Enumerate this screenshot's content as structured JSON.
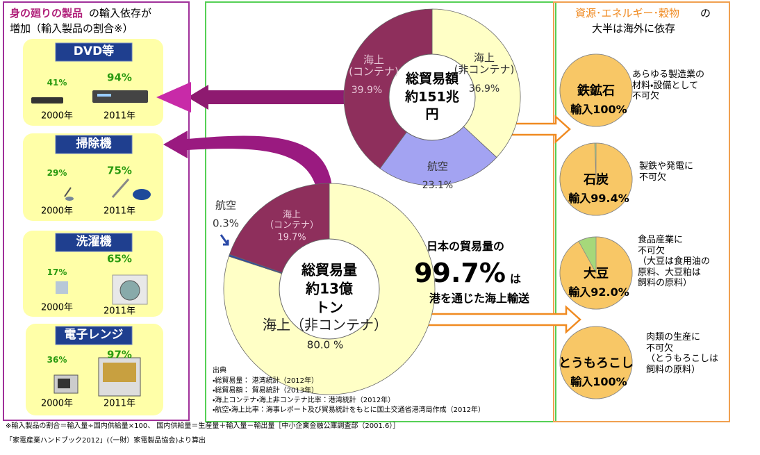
{
  "left": {
    "title_emphasis": "身の廻りの製品",
    "title_rest": "の輸入依存が",
    "title_line2": "増加（輸入製品の割合※）",
    "products": [
      {
        "name": "DVD等",
        "items": [
          {
            "share": "41%",
            "year": "2000年"
          },
          {
            "share": "94%",
            "year": "2011年"
          }
        ]
      },
      {
        "name": "掃除機",
        "items": [
          {
            "share": "29%",
            "year": "2000年"
          },
          {
            "share": "75%",
            "year": "2011年"
          }
        ]
      },
      {
        "name": "洗濯機",
        "items": [
          {
            "share": "17%",
            "year": "2000年"
          },
          {
            "share": "65%",
            "year": "2011年"
          }
        ]
      },
      {
        "name": "電子レンジ",
        "items": [
          {
            "share": "36%",
            "year": "2000年"
          },
          {
            "share": "97%",
            "year": "2011年"
          }
        ]
      }
    ]
  },
  "chart_data": [
    {
      "type": "donut",
      "center_label": "総貿易額\n約151兆\n円",
      "categories": [
        "海上\n(非コンテナ)",
        "航空",
        "海上\n(コンテナ)"
      ],
      "values": [
        36.9,
        23.1,
        39.9
      ],
      "value_labels": [
        "36.9%",
        "23.1%",
        "39.9%"
      ],
      "colors": [
        "#ffffc6",
        "#a3a3f2",
        "#8e2f5c"
      ]
    },
    {
      "type": "donut",
      "center_label": "総貿易量\n約13億\nトン",
      "categories": [
        "海上（非コンテナ）",
        "航空",
        "海上\n（コンテナ）"
      ],
      "values": [
        80.0,
        0.3,
        19.7
      ],
      "value_labels": [
        "80.0 %",
        "0.3%",
        "19.7%"
      ],
      "colors": [
        "#ffffc6",
        "#2b4aa8",
        "#8e2f5c"
      ]
    },
    {
      "type": "pies",
      "title_emphasis": "資源･エネルギー･穀物",
      "title_rest": "の",
      "title_line2": "大半は海外に依存",
      "categories": [
        "鉄鉱石",
        "石炭",
        "大豆",
        "とうもろこし"
      ],
      "values": [
        100,
        99.4,
        92.0,
        100
      ],
      "value_labels": [
        "輸入100%",
        "輸入99.4%",
        "輸入92.0%",
        "輸入100%"
      ],
      "notes": [
        "あらゆる製造業の\n材料・設備として\n不可欠",
        "製鉄や発電に\n不可欠",
        "食品産業に\n不可欠\n（大豆は食用油の\n原料、大豆粕は\n飼料の原料）",
        "肉類の生産に\n不可欠\n（とうもろこしは\n飼料の原料）"
      ],
      "color": "#f8c766"
    }
  ],
  "center_note": {
    "line1": "日本の貿易量の",
    "figure": "99.7%",
    "figure_suffix": "は",
    "line3": "港を通じた海上輸送"
  },
  "sources": {
    "heading": "出典",
    "items": [
      "・総貿易量： 港湾統計（2012年）",
      "・総貿易額： 貿易統計（2013年）",
      "・海上コンテナ・海上非コンテナ比率：港湾統計（2012年）",
      "・航空・海上比率：海事レポート及び貿易統計をもとに国土交通省港湾局作成（2012年）"
    ]
  },
  "footer": {
    "line1": "※輸入製品の割合＝輸入量÷国内供給量×100、 国内供給量＝生産量＋輸入量－輸出量［中小企業金融公庫調査部（2001.6）］",
    "line2": "「家電産業ハンドブック2012」(（一財）家電製品協会)より算出"
  }
}
